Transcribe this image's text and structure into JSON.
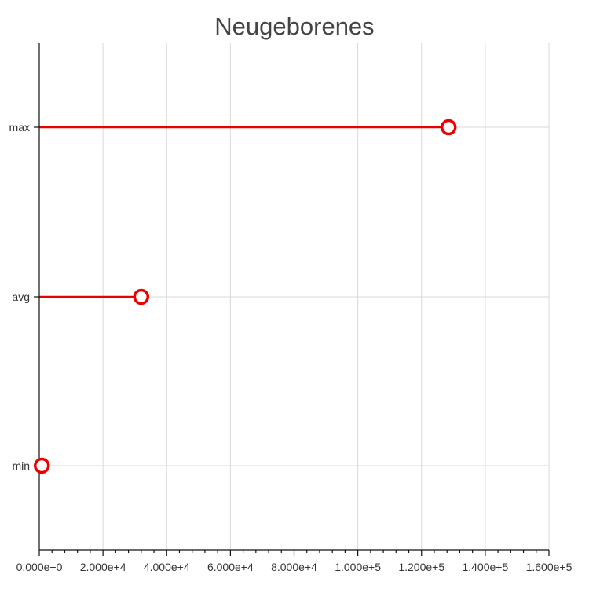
{
  "chart_data": {
    "type": "lollipop",
    "orientation": "horizontal",
    "title": "Neugeborenes",
    "xlabel": "",
    "ylabel": "",
    "categories": [
      "max",
      "avg",
      "min"
    ],
    "values": [
      128500,
      32000,
      800
    ],
    "xlim": [
      0,
      160000
    ],
    "xticks": [
      0,
      20000,
      40000,
      60000,
      80000,
      100000,
      120000,
      140000,
      160000
    ],
    "xtick_labels": [
      "0.000e+0",
      "2.000e+4",
      "4.000e+4",
      "6.000e+4",
      "8.000e+4",
      "1.000e+5",
      "1.200e+5",
      "1.400e+5",
      "1.600e+5"
    ],
    "minor_ticks_per_major": 4,
    "grid": true,
    "color": "#ee0000"
  }
}
